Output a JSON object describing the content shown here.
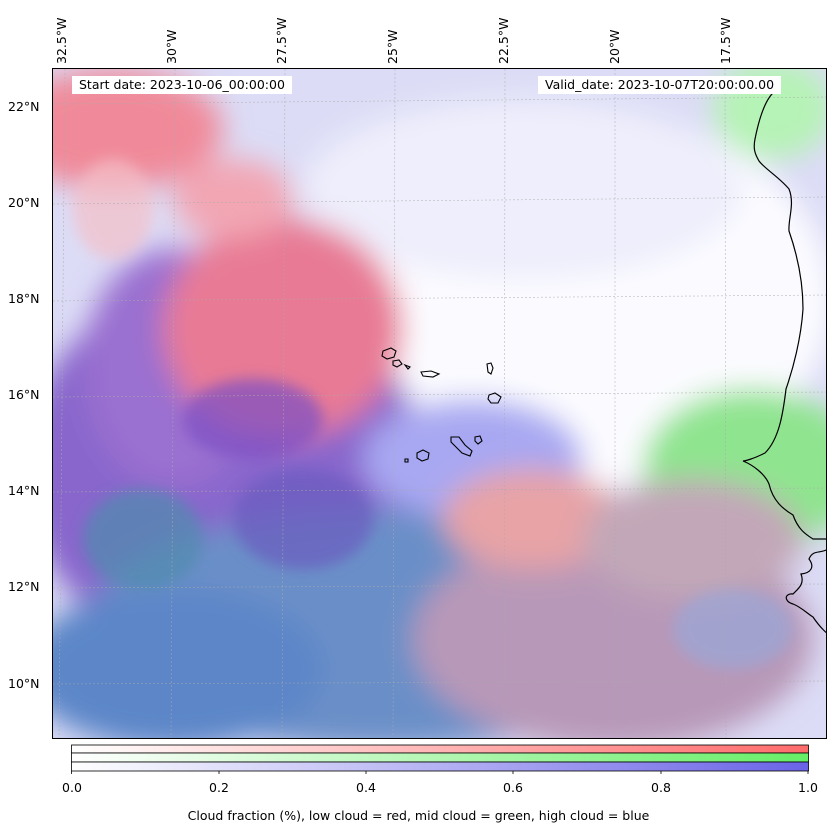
{
  "map": {
    "title_start": "Start date: 2023-10-06_00:00:00",
    "title_valid": "Valid_date: 2023-10-07T20:00:00.00",
    "lon_labels": [
      "32.5°W",
      "30°W",
      "27.5°W",
      "25°W",
      "22.5°W",
      "20°W",
      "17.5°W"
    ],
    "lat_labels": [
      "22°N",
      "20°N",
      "18°N",
      "16°N",
      "14°N",
      "12°N",
      "10°N"
    ],
    "extent": {
      "lon": [
        -33,
        -15.5
      ],
      "lat": [
        8.8,
        22.8
      ]
    }
  },
  "colorbar": {
    "title": "Cloud fraction (%), low cloud = red, mid cloud = green, high cloud = blue",
    "ticks": [
      "0.0",
      "0.2",
      "0.4",
      "0.6",
      "0.8",
      "1.0"
    ],
    "colors": {
      "low": "#ff6b6b",
      "mid": "#66ee66",
      "high": "#6a63e8"
    }
  }
}
